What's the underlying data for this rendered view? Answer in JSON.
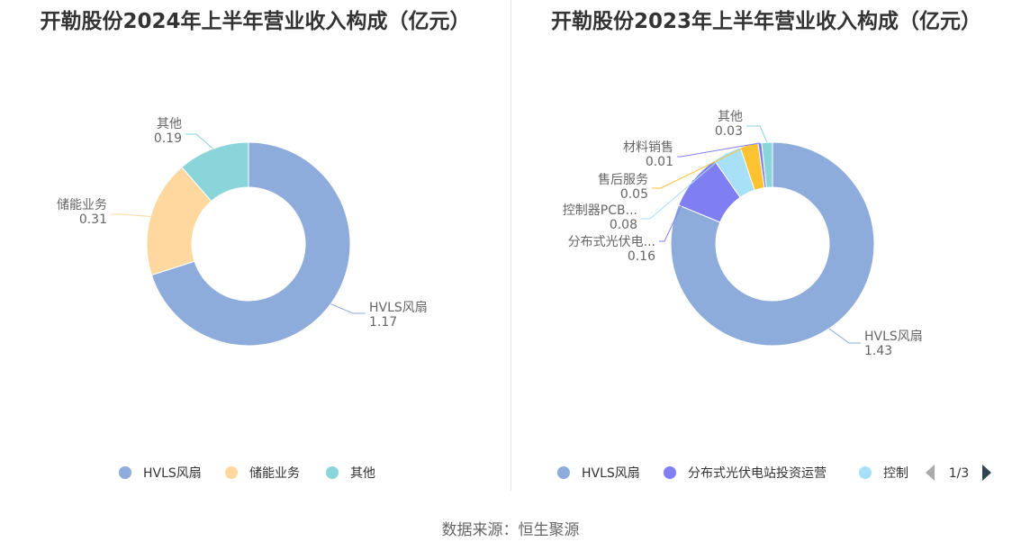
{
  "chart_data": [
    {
      "type": "pie",
      "variant": "donut",
      "title": "开勒股份2024年上半年营业收入构成（亿元）",
      "slices": [
        {
          "name": "HVLS风扇",
          "label": "HVLS风扇",
          "value": 1.17,
          "value_text": "1.17",
          "color": "#8eacdb"
        },
        {
          "name": "储能业务",
          "label": "储能业务",
          "value": 0.31,
          "value_text": "0.31",
          "color": "#fed89e"
        },
        {
          "name": "其他",
          "label": "其他",
          "value": 0.19,
          "value_text": "0.19",
          "color": "#8ad5d9"
        }
      ],
      "legend": {
        "position": "bottom",
        "items": [
          "HVLS风扇",
          "储能业务",
          "其他"
        ]
      }
    },
    {
      "type": "pie",
      "variant": "donut",
      "title": "开勒股份2023年上半年营业收入构成（亿元）",
      "slices": [
        {
          "name": "HVLS风扇",
          "label": "HVLS风扇",
          "value": 1.43,
          "value_text": "1.43",
          "color": "#8eacdb"
        },
        {
          "name": "分布式光伏电站投资运营",
          "label": "分布式光伏电...",
          "value": 0.16,
          "value_text": "0.16",
          "color": "#7f7ff3"
        },
        {
          "name": "控制器PCB",
          "label": "控制器PCB...",
          "value": 0.08,
          "value_text": "0.08",
          "color": "#a8e1f7"
        },
        {
          "name": "售后服务",
          "label": "售后服务",
          "value": 0.05,
          "value_text": "0.05",
          "color": "#fbc332"
        },
        {
          "name": "材料销售",
          "label": "材料销售",
          "value": 0.01,
          "value_text": "0.01",
          "color": "#7f7ff3"
        },
        {
          "name": "其他",
          "label": "其他",
          "value": 0.03,
          "value_text": "0.03",
          "color": "#8ad5d9"
        }
      ],
      "legend": {
        "position": "bottom",
        "items": [
          "HVLS风扇",
          "分布式光伏电站投资运营",
          "控制"
        ],
        "pager": "1/3"
      }
    }
  ],
  "source": "数据来源：恒生聚源",
  "icons": {
    "prev": "triangle-left-icon",
    "next": "triangle-right-icon"
  }
}
